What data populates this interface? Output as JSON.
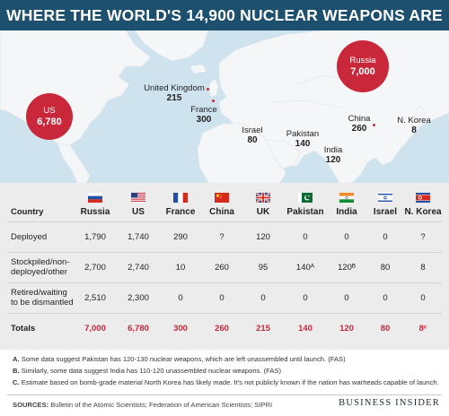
{
  "title": "WHERE THE WORLD'S 14,900 NUCLEAR WEAPONS ARE",
  "map": {
    "bubbles": [
      {
        "id": "us",
        "name": "US",
        "value": "6,780"
      },
      {
        "id": "russia",
        "name": "Russia",
        "value": "7,000"
      }
    ],
    "labels": [
      {
        "id": "uk",
        "name": "United Kingdom",
        "value": "215"
      },
      {
        "id": "france",
        "name": "France",
        "value": "300"
      },
      {
        "id": "israel",
        "name": "Israel",
        "value": "80"
      },
      {
        "id": "pakistan",
        "name": "Pakistan",
        "value": "140"
      },
      {
        "id": "india",
        "name": "India",
        "value": "120"
      },
      {
        "id": "china",
        "name": "China",
        "value": "260"
      },
      {
        "id": "nkorea",
        "name": "N. Korea",
        "value": "8"
      }
    ],
    "colors": {
      "ocean": "#cfe3ef",
      "land": "#f4f6f7",
      "bubble": "#c8283a"
    }
  },
  "table": {
    "corner": "Country",
    "columns": [
      "Russia",
      "US",
      "France",
      "China",
      "UK",
      "Pakistan",
      "India",
      "Israel",
      "N. Korea"
    ],
    "flag_icons": [
      "russia-flag-icon",
      "us-flag-icon",
      "france-flag-icon",
      "china-flag-icon",
      "uk-flag-icon",
      "pakistan-flag-icon",
      "india-flag-icon",
      "israel-flag-icon",
      "north-korea-flag-icon"
    ],
    "rows": [
      {
        "label": "Deployed",
        "values": [
          "1,790",
          "1,740",
          "290",
          "?",
          "120",
          "0",
          "0",
          "0",
          "?"
        ]
      },
      {
        "label": "Stockpiled/non-deployed/other",
        "values": [
          "2,700",
          "2,740",
          "10",
          "260",
          "95",
          "140ᴬ",
          "120ᴮ",
          "80",
          "8"
        ]
      },
      {
        "label": "Retired/waiting to be dismantled",
        "values": [
          "2,510",
          "2,300",
          "0",
          "0",
          "0",
          "0",
          "0",
          "0",
          "0"
        ]
      }
    ],
    "totals": {
      "label": "Totals",
      "values": [
        "7,000",
        "6,780",
        "300",
        "260",
        "215",
        "140",
        "120",
        "80",
        "8ᶜ"
      ]
    }
  },
  "notes": [
    {
      "key": "A.",
      "text": "Some data suggest Pakistan has 120-130 nuclear weapons, which are left unassembled until launch. (FAS)"
    },
    {
      "key": "B.",
      "text": "Similarly, some data suggest India has 110-120 unassembled nuclear weapons. (FAS)"
    },
    {
      "key": "C.",
      "text": "Estimate based on bomb-grade material North Korea has likely made. It's not publicly known if the nation has warheads capable of launch."
    }
  ],
  "sources": {
    "label": "SOURCES:",
    "text": "Bulletin of the Atomic Scientists; Federation of American Scientists; SIPRI"
  },
  "brand": "BUSINESS INSIDER"
}
